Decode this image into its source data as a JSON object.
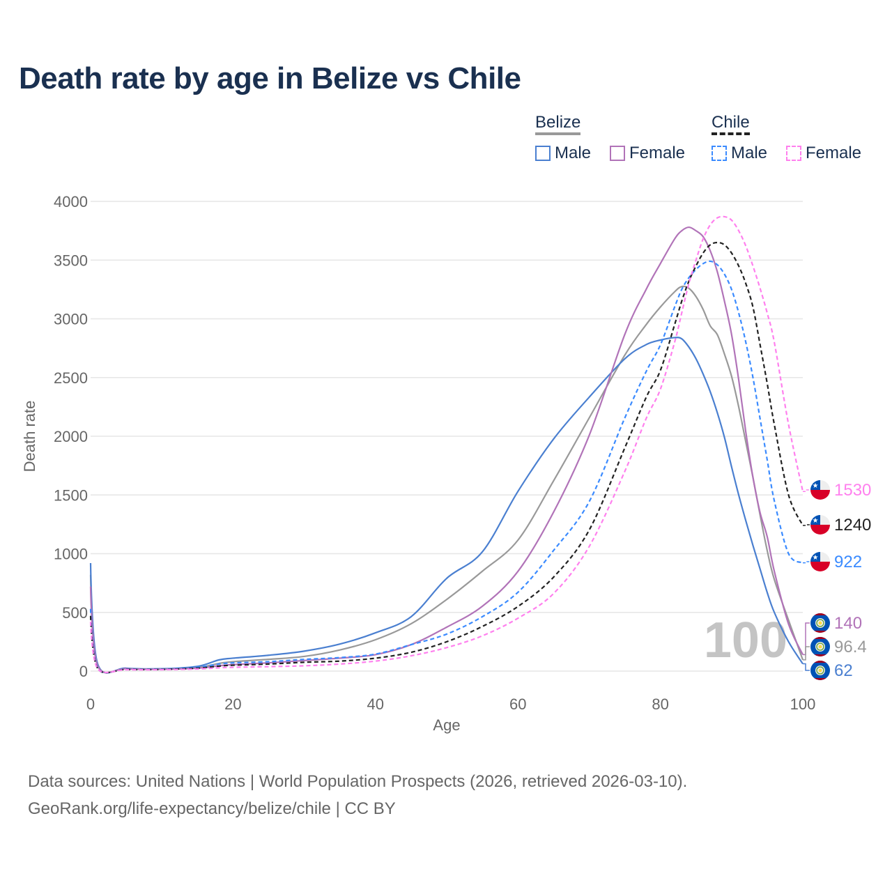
{
  "title": "Death rate by age in Belize vs Chile",
  "legend": {
    "groups": [
      {
        "name": "Belize",
        "items": [
          {
            "label": "Male",
            "color": "#4a7fd0",
            "dashed": false
          },
          {
            "label": "Female",
            "color": "#b173b8",
            "dashed": false
          }
        ],
        "underline_color": "#999999",
        "underline_dashed": false
      },
      {
        "name": "Chile",
        "items": [
          {
            "label": "Male",
            "color": "#3b8bff",
            "dashed": true
          },
          {
            "label": "Female",
            "color": "#ff80ee",
            "dashed": true
          }
        ],
        "underline_color": "#222222",
        "underline_dashed": true
      }
    ]
  },
  "watermark": "100",
  "footer": {
    "line1": "Data sources: United Nations | World Population Prospects (2026, retrieved 2026-03-10).",
    "line2": "GeoRank.org/life-expectancy/belize/chile | CC BY"
  },
  "chart_data": {
    "type": "line",
    "title": "Death rate by age in Belize vs Chile",
    "xlabel": "Age",
    "ylabel": "Death rate",
    "xlim": [
      0,
      100
    ],
    "ylim": [
      0,
      4000
    ],
    "xticks": [
      0,
      20,
      40,
      60,
      80,
      100
    ],
    "yticks": [
      0,
      500,
      1000,
      1500,
      2000,
      2500,
      3000,
      3500,
      4000
    ],
    "grid": true,
    "x": [
      0,
      1,
      5,
      10,
      15,
      18,
      20,
      25,
      30,
      35,
      40,
      45,
      50,
      55,
      60,
      65,
      70,
      75,
      78,
      80,
      82,
      83,
      84,
      85,
      86,
      87,
      88,
      89,
      90,
      91,
      92,
      93,
      94,
      95,
      96,
      98,
      100
    ],
    "series": [
      {
        "name": "Chile Female",
        "country": "Chile",
        "color": "#ff80ee",
        "dashed": true,
        "end_label": "1530",
        "values": [
          420,
          20,
          12,
          12,
          18,
          28,
          32,
          38,
          45,
          60,
          85,
          130,
          200,
          300,
          450,
          660,
          1060,
          1700,
          2150,
          2400,
          2800,
          3050,
          3300,
          3500,
          3680,
          3800,
          3860,
          3870,
          3840,
          3750,
          3620,
          3450,
          3260,
          3050,
          2800,
          2100,
          1530
        ]
      },
      {
        "name": "Chile Total",
        "country": "Chile",
        "color": "#222222",
        "dashed": true,
        "end_label": "1240",
        "values": [
          470,
          22,
          14,
          14,
          25,
          42,
          50,
          60,
          75,
          85,
          110,
          160,
          250,
          380,
          550,
          800,
          1200,
          1900,
          2330,
          2560,
          2950,
          3150,
          3320,
          3450,
          3560,
          3630,
          3650,
          3630,
          3560,
          3450,
          3300,
          3100,
          2780,
          2450,
          2100,
          1500,
          1240
        ]
      },
      {
        "name": "Chile Male",
        "country": "Chile",
        "color": "#3b8bff",
        "dashed": true,
        "end_label": "922",
        "values": [
          530,
          25,
          16,
          16,
          32,
          60,
          70,
          80,
          100,
          115,
          145,
          225,
          315,
          463,
          671,
          1027,
          1442,
          2155,
          2550,
          2777,
          3100,
          3250,
          3350,
          3420,
          3470,
          3490,
          3460,
          3380,
          3250,
          3050,
          2800,
          2500,
          2150,
          1800,
          1450,
          1000,
          922
        ]
      },
      {
        "name": "Belize Female",
        "country": "Belize",
        "color": "#b173b8",
        "dashed": false,
        "end_label": "140",
        "values": [
          720,
          45,
          20,
          16,
          25,
          45,
          55,
          70,
          90,
          110,
          140,
          225,
          374,
          552,
          849,
          1353,
          2006,
          2866,
          3250,
          3470,
          3680,
          3750,
          3780,
          3750,
          3700,
          3580,
          3400,
          3150,
          2866,
          2480,
          2035,
          1650,
          1350,
          1145,
          850,
          400,
          140
        ]
      },
      {
        "name": "Belize Total",
        "country": "Belize",
        "color": "#999999",
        "dashed": false,
        "end_label": "96.4",
        "values": [
          820,
          52,
          22,
          18,
          30,
          65,
          80,
          100,
          125,
          180,
          267,
          403,
          610,
          850,
          1115,
          1620,
          2155,
          2690,
          2950,
          3100,
          3230,
          3275,
          3260,
          3190,
          3080,
          2940,
          2865,
          2700,
          2510,
          2250,
          1950,
          1650,
          1330,
          1027,
          780,
          433,
          96
        ]
      },
      {
        "name": "Belize Male",
        "country": "Belize",
        "color": "#4a7fd0",
        "dashed": false,
        "end_label": "62",
        "values": [
          920,
          60,
          25,
          20,
          40,
          95,
          110,
          135,
          170,
          230,
          326,
          463,
          790,
          1015,
          1530,
          1976,
          2332,
          2659,
          2780,
          2819,
          2840,
          2830,
          2760,
          2660,
          2530,
          2380,
          2200,
          1990,
          1739,
          1500,
          1280,
          1070,
          870,
          670,
          500,
          250,
          62
        ]
      }
    ]
  }
}
